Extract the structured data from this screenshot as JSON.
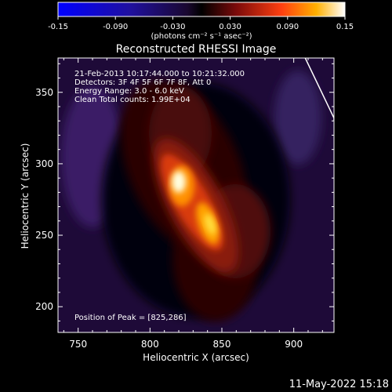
{
  "colorbar": {
    "ticks": [
      "-0.15",
      "-0.090",
      "-0.030",
      "0.030",
      "0.090",
      "0.15"
    ],
    "units": "(photons cm⁻² s⁻¹ asec⁻²)",
    "range": [
      -0.15,
      0.15
    ]
  },
  "chart_data": {
    "type": "heatmap",
    "title": "Reconstructed RHESSI Image",
    "xlabel": "Heliocentric X (arcsec)",
    "ylabel": "Heliocentric Y (arcsec)",
    "xlim": [
      736,
      928
    ],
    "ylim": [
      182,
      374
    ],
    "xticks": [
      750,
      800,
      850,
      900
    ],
    "yticks": [
      200,
      250,
      300,
      350
    ],
    "annotations": [
      "21-Feb-2013 10:17:44.000 to 10:21:32.000",
      "Detectors: 3F 4F 5F 6F 7F 8F, Att 0",
      "Energy Range: 3.0 - 6.0 keV",
      "Clean      Total counts: 1.99E+04"
    ],
    "peak_label": "Position of Peak = [825,286]",
    "peak": [
      825,
      286
    ],
    "limb_line": [
      [
        908,
        374
      ],
      [
        928,
        332
      ],
      [
        928,
        330
      ]
    ]
  },
  "footer": {
    "timestamp": "11-May-2022 15:18"
  },
  "colors": {
    "background": "#000000",
    "text": "#ffffff"
  }
}
